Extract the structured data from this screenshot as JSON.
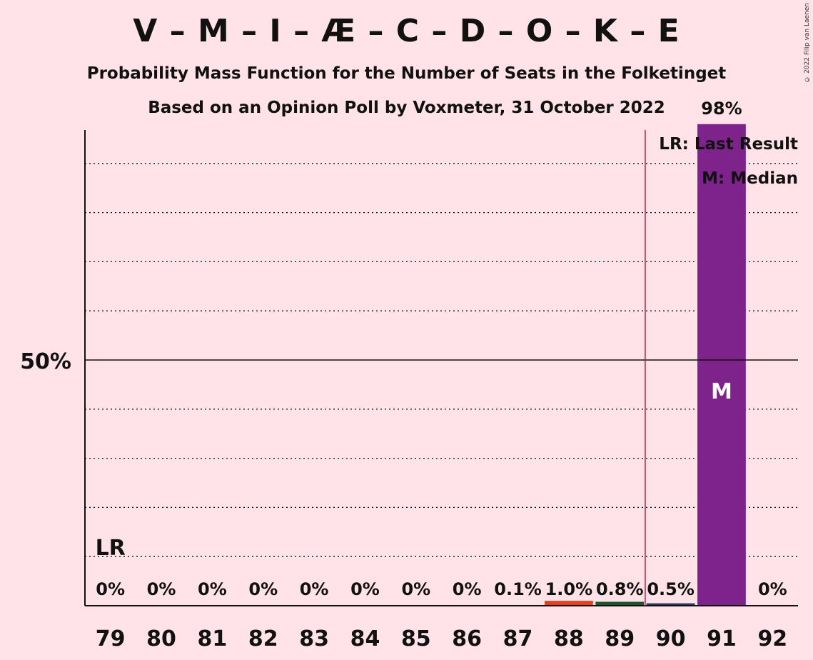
{
  "title": "V – M – I – Æ – C – D – O – K – E",
  "subtitle1": "Probability Mass Function for the Number of Seats in the Folketinget",
  "subtitle2": "Based on an Opinion Poll by Voxmeter, 31 October 2022",
  "copyright": "© 2022 Filip van Laenen",
  "legend": {
    "lr": "LR: Last Result",
    "median": "M: Median"
  },
  "chart_data": {
    "type": "bar",
    "categories": [
      "79",
      "80",
      "81",
      "82",
      "83",
      "84",
      "85",
      "86",
      "87",
      "88",
      "89",
      "90",
      "91",
      "92"
    ],
    "values": [
      0,
      0,
      0,
      0,
      0,
      0,
      0,
      0,
      0.1,
      1.0,
      0.8,
      0.5,
      98,
      0
    ],
    "value_labels": [
      "0%",
      "0%",
      "0%",
      "0%",
      "0%",
      "0%",
      "0%",
      "0%",
      "0.1%",
      "1.0%",
      "0.8%",
      "0.5%",
      "98%",
      "0%"
    ],
    "colors": [
      "#7F238C",
      "#7F238C",
      "#7F238C",
      "#7F238C",
      "#7F238C",
      "#7F238C",
      "#7F238C",
      "#7F238C",
      "#7F238C",
      "#E4401F",
      "#1E5631",
      "#2B3A6B",
      "#7F238C",
      "#7F238C"
    ],
    "ylim": [
      0,
      100
    ],
    "y_tick_label": "50%",
    "y_tick_value": 50,
    "last_result": "79",
    "last_result_label": "LR",
    "median": "91",
    "median_label": "M",
    "majority_line_after": "89",
    "grid": true
  }
}
